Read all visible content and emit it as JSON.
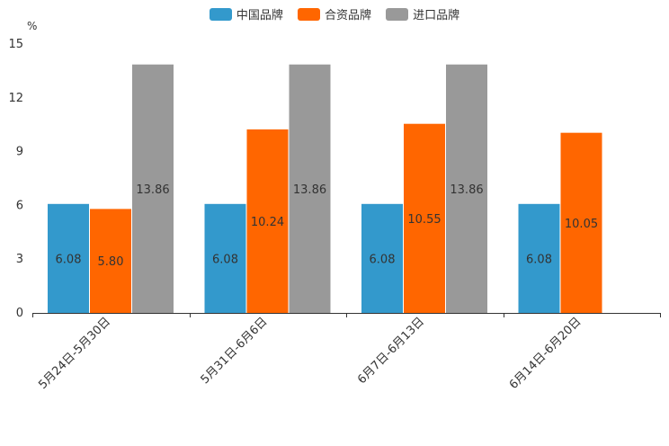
{
  "chart_data": {
    "type": "bar",
    "unit_label": "%",
    "categories": [
      "5月24日-5月30日",
      "5月31日-6月6日",
      "6月7日-6月13日",
      "6月14日-6月20日"
    ],
    "series": [
      {
        "name": "中国品牌",
        "color": "#3399cc",
        "values": [
          6.08,
          6.08,
          6.08,
          6.08
        ],
        "labels": [
          "6.08",
          "6.08",
          "6.08",
          "6.08"
        ]
      },
      {
        "name": "合资品牌",
        "color": "#ff6600",
        "values": [
          5.8,
          10.24,
          10.55,
          10.05
        ],
        "labels": [
          "5.80",
          "10.24",
          "10.55",
          "10.05"
        ]
      },
      {
        "name": "进口品牌",
        "color": "#999999",
        "values": [
          13.86,
          13.86,
          13.86,
          null
        ],
        "labels": [
          "13.86",
          "13.86",
          "13.86",
          ""
        ]
      }
    ],
    "ylim": [
      0,
      15
    ],
    "yticks": [
      "0",
      "3",
      "6",
      "9",
      "12",
      "15"
    ],
    "legend_position": "top-center",
    "grid": false
  }
}
